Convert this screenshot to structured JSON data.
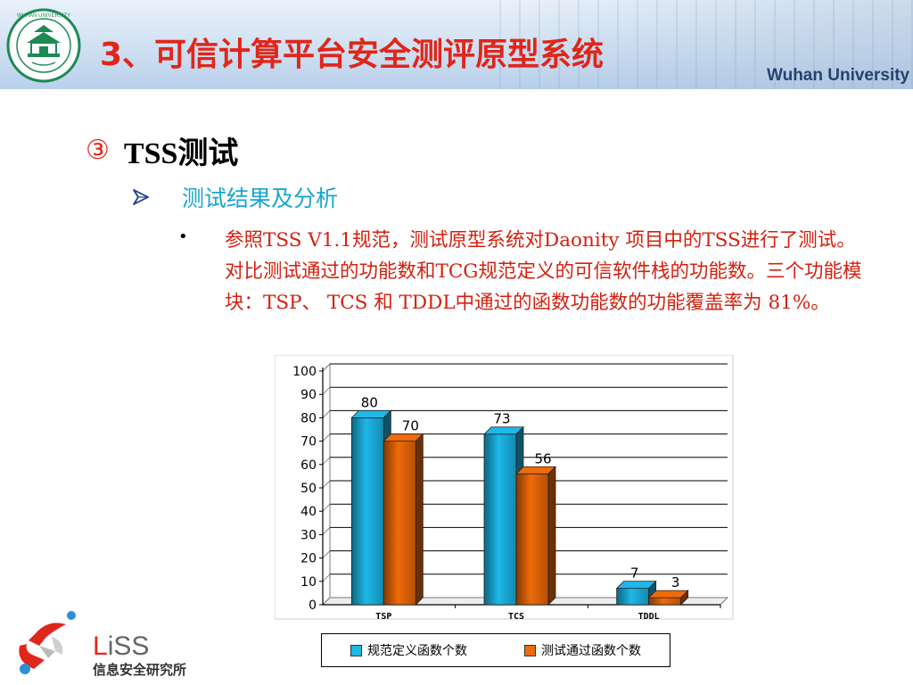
{
  "header": {
    "title": "3、可信计算平台安全测评原型系统",
    "university_name": "Wuhan University",
    "logo_icon": "wuhan-university-seal-icon",
    "logo_text": "WUHAN UNIVERSITY"
  },
  "section": {
    "number_glyph": "③",
    "heading": "TSS测试",
    "subheading": "测试结果及分析",
    "bullet_glyph": "•",
    "paragraph": "参照TSS V1.1规范，测试原型系统对Daonity 项目中的TSS进行了测试。对比测试通过的功能数和TCG规范定义的可信软件栈的功能数。三个功能模块：TSP、 TCS  和 TDDL中通过的函数功能数的功能覆盖率为 81%。"
  },
  "chart_data": {
    "type": "bar",
    "categories": [
      "TSP",
      "TCS",
      "TDDL"
    ],
    "series": [
      {
        "name": "规范定义函数个数",
        "values": [
          80,
          73,
          7
        ],
        "color": "#1cb8e8"
      },
      {
        "name": "测试通过函数个数",
        "values": [
          70,
          56,
          3
        ],
        "color": "#ef6a08"
      }
    ],
    "y_ticks": [
      "0",
      "10",
      "20",
      "30",
      "40",
      "50",
      "60",
      "70",
      "80",
      "90",
      "100"
    ],
    "ylim": [
      0,
      100
    ],
    "grid": true,
    "three_d": true,
    "legend_position": "bottom",
    "title": "",
    "xlabel": "",
    "ylabel": ""
  },
  "footer": {
    "logo_icon": "liss-logo-icon",
    "wordmark_first": "L",
    "wordmark_rest": "iSS",
    "org_name": "信息安全研究所"
  },
  "colors": {
    "title_red": "#e0261a",
    "subheading_blue": "#17a6cf",
    "paragraph_red": "#d4200f"
  }
}
